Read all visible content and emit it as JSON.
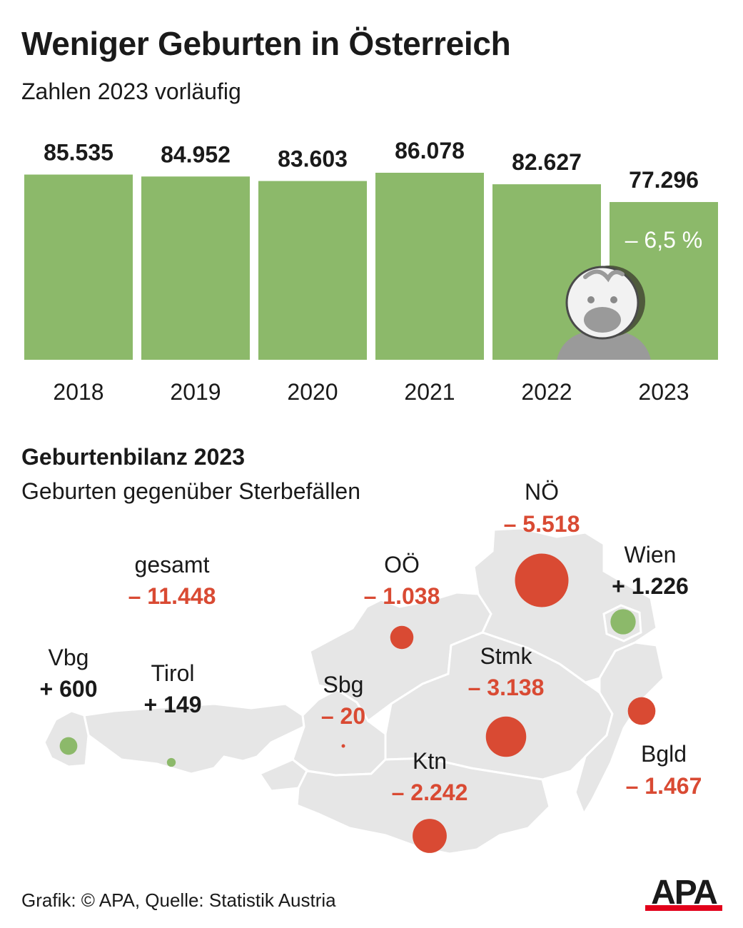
{
  "header": {
    "title": "Weniger Geburten in Österreich",
    "subtitle": "Zahlen 2023 vorläufig"
  },
  "colors": {
    "bar": "#8cb96a",
    "positive": "#8cb96a",
    "negative": "#d94a33",
    "map": "#e6e6e6",
    "map_border": "#ffffff",
    "text": "#1a1a1a",
    "logo_red": "#e2001a"
  },
  "chart_data": [
    {
      "type": "bar",
      "title": "Weniger Geburten in Österreich",
      "subtitle": "Zahlen 2023 vorläufig",
      "categories": [
        "2018",
        "2019",
        "2020",
        "2021",
        "2022",
        "2023"
      ],
      "values": [
        85535,
        84952,
        83603,
        86078,
        82627,
        77296
      ],
      "value_labels": [
        "85.535",
        "84.952",
        "83.603",
        "86.078",
        "82.627",
        "77.296"
      ],
      "annotation": "– 6,5 %",
      "annotation_category": "2023",
      "xlabel": "",
      "ylabel": "",
      "grid": false,
      "legend": "none"
    },
    {
      "type": "bubble-map",
      "title": "Geburtenbilanz 2023",
      "subtitle": "Geburten gegenüber Sterbefällen",
      "total": {
        "name": "gesamt",
        "value": -11448,
        "label": "– 11.448"
      },
      "regions": [
        {
          "name": "Vbg",
          "value": 600,
          "label": "+ 600"
        },
        {
          "name": "Tirol",
          "value": 149,
          "label": "+ 149"
        },
        {
          "name": "Sbg",
          "value": -20,
          "label": "– 20"
        },
        {
          "name": "OÖ",
          "value": -1038,
          "label": "– 1.038"
        },
        {
          "name": "NÖ",
          "value": -5518,
          "label": "– 5.518"
        },
        {
          "name": "Wien",
          "value": 1226,
          "label": "+ 1.226"
        },
        {
          "name": "Stmk",
          "value": -3138,
          "label": "– 3.138"
        },
        {
          "name": "Ktn",
          "value": -2242,
          "label": "– 2.242"
        },
        {
          "name": "Bgld",
          "value": -1467,
          "label": "– 1.467"
        }
      ]
    }
  ],
  "footer": {
    "credit": "Grafik: © APA, Quelle: Statistik Austria"
  },
  "logo": {
    "text": "APA"
  },
  "icons": {
    "baby": "baby-face-icon"
  }
}
